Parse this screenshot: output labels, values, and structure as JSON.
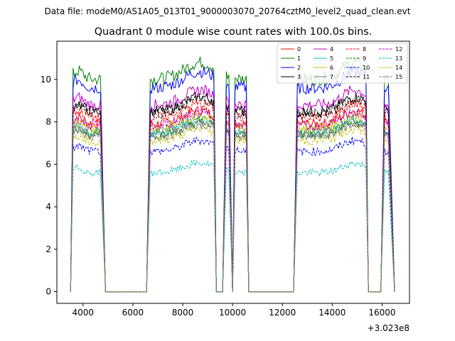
{
  "chart_data": {
    "type": "line",
    "suptitle": "Data file: modeM0/AS1A05_013T01_9000003070_20764cztM0_level2_quad_clean.evt",
    "title": "Quadrant 0 module wise count rates with 100.0s bins.",
    "xlabel": "",
    "ylabel": "",
    "x_offset_label": "+3.023e8",
    "xlim": [
      2950,
      17100
    ],
    "ylim": [
      -0.55,
      11.8
    ],
    "xticks": [
      4000,
      6000,
      8000,
      10000,
      12000,
      14000,
      16000
    ],
    "xtick_labels": [
      "4000",
      "6000",
      "8000",
      "10000",
      "12000",
      "14000",
      "16000"
    ],
    "yticks": [
      0,
      2,
      4,
      6,
      8,
      10
    ],
    "ytick_labels": [
      "0",
      "2",
      "4",
      "6",
      "8",
      "10"
    ],
    "grid": false,
    "legend_position": "top-right",
    "segments": [
      {
        "start": 3600,
        "end": 4700,
        "rise": 3500,
        "fall_to": 4900
      },
      {
        "start": 6700,
        "end": 9250,
        "rise": 6550,
        "fall_to": 9350
      },
      {
        "start": 9750,
        "end": 9850,
        "rise": 9600,
        "fall_to": 10000
      },
      {
        "start": 10100,
        "end": 10550,
        "rise": 10000,
        "fall_to": 10650
      },
      {
        "start": 12600,
        "end": 15350,
        "rise": 12450,
        "fall_to": 15450
      },
      {
        "start": 16100,
        "end": 16250,
        "rise": 15950,
        "fall_to": 16500
      }
    ],
    "series": [
      {
        "name": "0",
        "color": "#ff0000",
        "dash": "solid",
        "level": 7.9
      },
      {
        "name": "1",
        "color": "#008000",
        "dash": "solid",
        "level": 10.0
      },
      {
        "name": "2",
        "color": "#0000ff",
        "dash": "solid",
        "level": 9.6
      },
      {
        "name": "3",
        "color": "#000000",
        "dash": "solid",
        "level": 8.5
      },
      {
        "name": "4",
        "color": "#bf00bf",
        "dash": "solid",
        "level": 8.8
      },
      {
        "name": "5",
        "color": "#00bfbf",
        "dash": "solid",
        "level": 7.5
      },
      {
        "name": "6",
        "color": "#bfbf00",
        "dash": "solid",
        "level": 7.7
      },
      {
        "name": "7",
        "color": "#808080",
        "dash": "solid",
        "level": 7.3
      },
      {
        "name": "8",
        "color": "#ff0000",
        "dash": "dashed",
        "level": 8.2
      },
      {
        "name": "9",
        "color": "#008000",
        "dash": "dashed",
        "level": 7.4
      },
      {
        "name": "10",
        "color": "#0000ff",
        "dash": "dashed",
        "level": 6.6
      },
      {
        "name": "11",
        "color": "#000000",
        "dash": "dashed",
        "level": 8.4
      },
      {
        "name": "12",
        "color": "#bf00bf",
        "dash": "dashed",
        "level": 7.8
      },
      {
        "name": "13",
        "color": "#00bfbf",
        "dash": "dashed",
        "level": 5.6
      },
      {
        "name": "14",
        "color": "#bfbf00",
        "dash": "dashed",
        "level": 7.1
      },
      {
        "name": "15",
        "color": "#808080",
        "dash": "dashed",
        "level": 7.4
      }
    ]
  }
}
